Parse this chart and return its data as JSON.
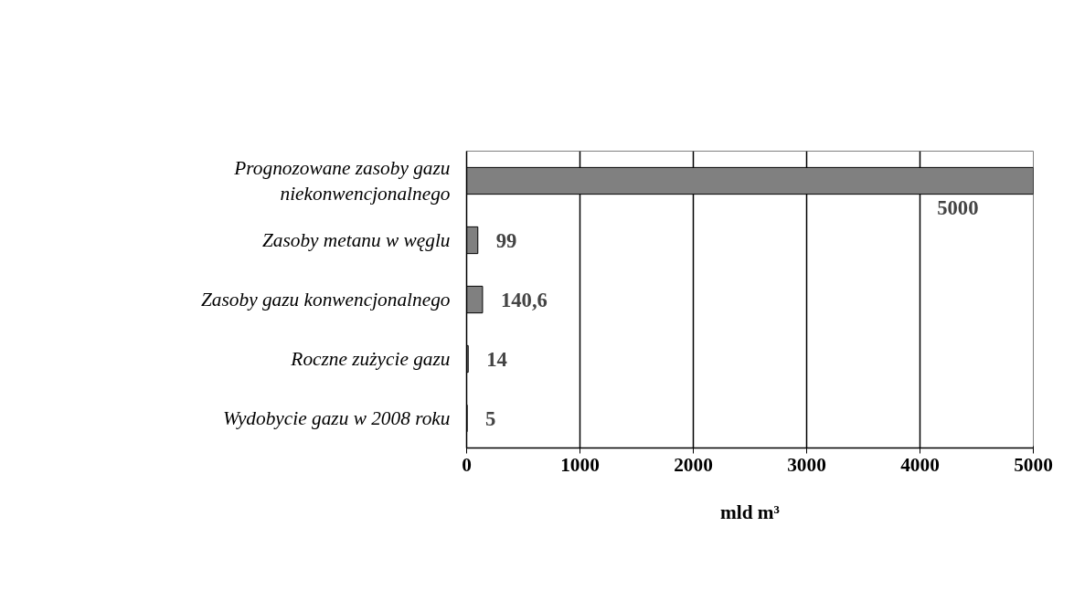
{
  "chart_data": {
    "type": "bar",
    "orientation": "horizontal",
    "xlabel": "mld m³",
    "categories": [
      "Prognozowane zasoby gazu niekonwencjonalnego",
      "Zasoby metanu w węglu",
      "Zasoby gazu konwencjonalnego",
      "Roczne zużycie gazu",
      "Wydobycie gazu w 2008 roku"
    ],
    "values": [
      5000,
      99,
      140.6,
      14,
      5
    ],
    "value_labels": [
      "5000",
      "99",
      "140,6",
      "14",
      "5"
    ],
    "color": "#808080",
    "xlim": [
      0,
      5000
    ],
    "xticks": [
      0,
      1000,
      2000,
      3000,
      4000,
      5000
    ],
    "grid": "x"
  }
}
